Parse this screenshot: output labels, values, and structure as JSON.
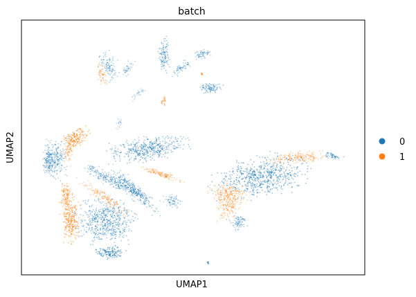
{
  "chart_data": {
    "type": "scatter",
    "title": "batch",
    "xlabel": "UMAP1",
    "ylabel": "UMAP2",
    "ticks": "none",
    "grid": false,
    "legend_position": "right",
    "series": [
      {
        "name": "0",
        "color": "#1f77b4"
      },
      {
        "name": "1",
        "color": "#ff7f0e"
      }
    ]
  }
}
